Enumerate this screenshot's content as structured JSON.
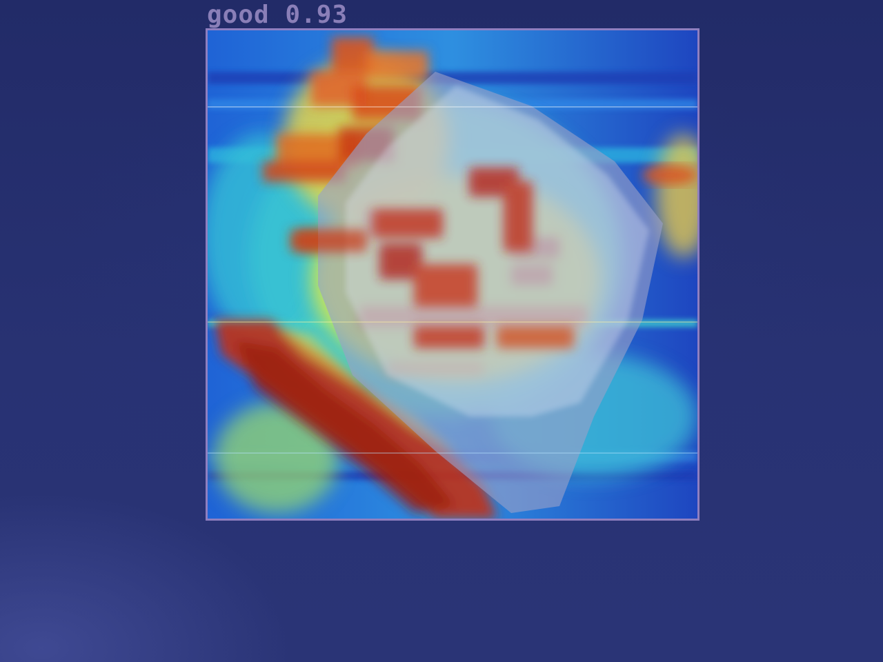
{
  "detection": {
    "label": "good 0.93"
  }
}
